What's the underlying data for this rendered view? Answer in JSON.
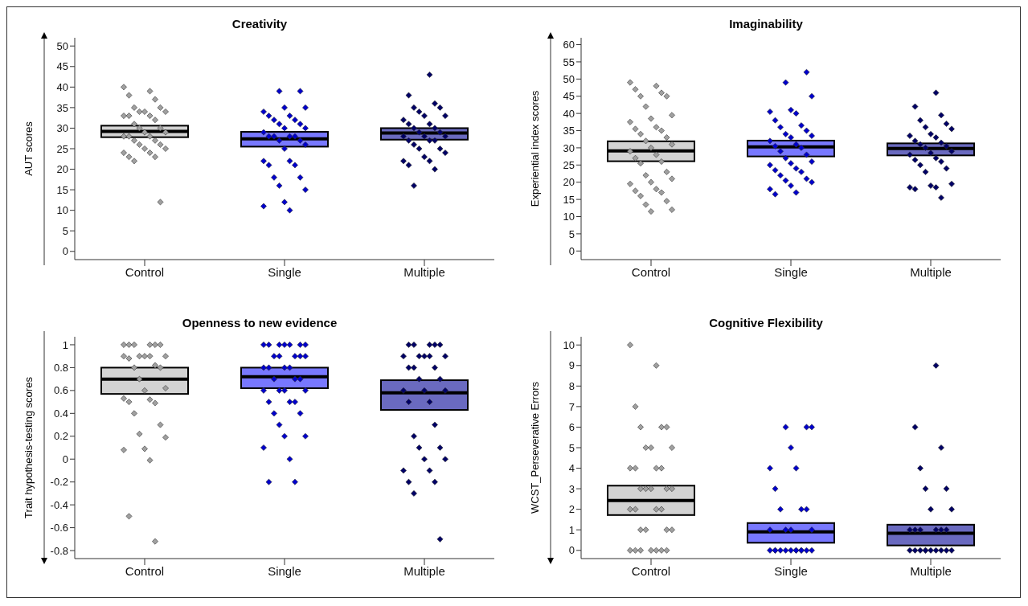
{
  "chart_data": [
    {
      "type": "box",
      "title": "Creativity",
      "ylabel": "AUT scores",
      "categories": [
        "Control",
        "Single",
        "Multiple"
      ],
      "ylim": [
        -2,
        52
      ],
      "yticks": [
        0,
        5,
        10,
        15,
        20,
        25,
        30,
        35,
        40,
        45,
        50
      ],
      "grid": false,
      "legend": false,
      "marker": "diamond",
      "colors": [
        "#d3d3d3",
        "#7878ff",
        "#6a6ac0"
      ],
      "boxes": [
        {
          "low": 27.8,
          "q1": 27.8,
          "median": 29.2,
          "q3": 30.6,
          "high": 30.6
        },
        {
          "low": 25.5,
          "q1": 25.5,
          "median": 27.4,
          "q3": 29.1,
          "high": 29.1
        },
        {
          "low": 27.2,
          "q1": 27.2,
          "median": 28.8,
          "q3": 30,
          "high": 30
        }
      ],
      "series": [
        {
          "type": "scatter",
          "color": "#a0a0a0",
          "x": [
            "Control",
            "Control",
            "Control",
            "Control",
            "Control",
            "Control",
            "Control",
            "Control",
            "Control",
            "Control",
            "Control",
            "Control",
            "Control",
            "Control",
            "Control",
            "Control",
            "Control",
            "Control",
            "Control",
            "Control",
            "Control",
            "Control",
            "Control",
            "Control",
            "Control",
            "Control",
            "Control",
            "Control",
            "Control",
            "Control",
            "Control",
            "Control",
            "Control"
          ],
          "values": [
            40,
            39,
            38,
            37,
            35,
            35,
            34,
            34,
            34,
            33,
            33,
            33,
            32,
            31,
            30,
            30,
            29,
            29,
            28,
            28,
            28,
            27,
            27,
            26,
            26,
            25,
            25,
            24,
            24,
            23,
            23,
            22,
            12
          ]
        },
        {
          "type": "scatter",
          "color": "#0000cc",
          "x": [
            "Single",
            "Single",
            "Single",
            "Single",
            "Single",
            "Single",
            "Single",
            "Single",
            "Single",
            "Single",
            "Single",
            "Single",
            "Single",
            "Single",
            "Single",
            "Single",
            "Single",
            "Single",
            "Single",
            "Single",
            "Single",
            "Single",
            "Single",
            "Single",
            "Single",
            "Single",
            "Single",
            "Single",
            "Single",
            "Single",
            "Single",
            "Single",
            "Single"
          ],
          "values": [
            39,
            39,
            35,
            35,
            34,
            33,
            33,
            32,
            32,
            31,
            31,
            30,
            30,
            29,
            28,
            28,
            28,
            28,
            27,
            27,
            26,
            25,
            22,
            22,
            21,
            21,
            18,
            18,
            16,
            15,
            12,
            11,
            10
          ]
        },
        {
          "type": "scatter",
          "color": "#000066",
          "x": [
            "Multiple",
            "Multiple",
            "Multiple",
            "Multiple",
            "Multiple",
            "Multiple",
            "Multiple",
            "Multiple",
            "Multiple",
            "Multiple",
            "Multiple",
            "Multiple",
            "Multiple",
            "Multiple",
            "Multiple",
            "Multiple",
            "Multiple",
            "Multiple",
            "Multiple",
            "Multiple",
            "Multiple",
            "Multiple",
            "Multiple",
            "Multiple",
            "Multiple",
            "Multiple",
            "Multiple",
            "Multiple",
            "Multiple",
            "Multiple",
            "Multiple"
          ],
          "values": [
            43,
            38,
            36,
            35,
            35,
            34,
            33,
            33,
            32,
            31,
            31,
            30,
            30,
            29,
            29,
            28,
            28,
            28,
            27,
            27,
            27,
            26,
            25,
            25,
            24,
            23,
            22,
            22,
            21,
            20,
            16
          ]
        }
      ]
    },
    {
      "type": "box",
      "title": "Imaginability",
      "ylabel": "Experiential index scores",
      "categories": [
        "Control",
        "Single",
        "Multiple"
      ],
      "ylim": [
        -2.5,
        62
      ],
      "yticks": [
        0,
        5,
        10,
        15,
        20,
        25,
        30,
        35,
        40,
        45,
        50,
        55,
        60
      ],
      "grid": false,
      "legend": false,
      "marker": "diamond",
      "colors": [
        "#d3d3d3",
        "#7878ff",
        "#6a6ac0"
      ],
      "boxes": [
        {
          "low": 26.1,
          "q1": 26.1,
          "median": 29.1,
          "q3": 31.9,
          "high": 31.9
        },
        {
          "low": 27.5,
          "q1": 27.5,
          "median": 30.3,
          "q3": 32.1,
          "high": 32.1
        },
        {
          "low": 27.8,
          "q1": 27.8,
          "median": 29.8,
          "q3": 31.3,
          "high": 31.3
        }
      ],
      "series": [
        {
          "type": "scatter",
          "color": "#a0a0a0",
          "x": [
            "Control",
            "Control",
            "Control",
            "Control",
            "Control",
            "Control",
            "Control",
            "Control",
            "Control",
            "Control",
            "Control",
            "Control",
            "Control",
            "Control",
            "Control",
            "Control",
            "Control",
            "Control",
            "Control",
            "Control",
            "Control",
            "Control",
            "Control",
            "Control",
            "Control",
            "Control",
            "Control",
            "Control",
            "Control",
            "Control",
            "Control",
            "Control",
            "Control",
            "Control",
            "Control",
            "Control"
          ],
          "values": [
            49,
            48,
            47,
            46,
            45,
            45,
            42,
            39.5,
            38.5,
            37.5,
            36,
            35.5,
            35,
            34,
            33,
            32,
            31,
            30,
            29,
            28,
            27,
            26,
            25.5,
            23,
            22,
            21,
            20,
            19.5,
            18,
            17.5,
            17,
            16,
            14.5,
            13.5,
            12,
            11.5
          ]
        },
        {
          "type": "scatter",
          "color": "#0000cc",
          "x": [
            "Single",
            "Single",
            "Single",
            "Single",
            "Single",
            "Single",
            "Single",
            "Single",
            "Single",
            "Single",
            "Single",
            "Single",
            "Single",
            "Single",
            "Single",
            "Single",
            "Single",
            "Single",
            "Single",
            "Single",
            "Single",
            "Single",
            "Single",
            "Single",
            "Single",
            "Single",
            "Single",
            "Single",
            "Single",
            "Single",
            "Single",
            "Single",
            "Single",
            "Single"
          ],
          "values": [
            52,
            49,
            45,
            41,
            40.5,
            40,
            38,
            36.5,
            36,
            35,
            34,
            33.5,
            33,
            32,
            31,
            30.5,
            30,
            29,
            28,
            27,
            26,
            25.5,
            25,
            24,
            23.5,
            23,
            22,
            21,
            20.5,
            20,
            19,
            18,
            17,
            16.5
          ]
        },
        {
          "type": "scatter",
          "color": "#000066",
          "x": [
            "Multiple",
            "Multiple",
            "Multiple",
            "Multiple",
            "Multiple",
            "Multiple",
            "Multiple",
            "Multiple",
            "Multiple",
            "Multiple",
            "Multiple",
            "Multiple",
            "Multiple",
            "Multiple",
            "Multiple",
            "Multiple",
            "Multiple",
            "Multiple",
            "Multiple",
            "Multiple",
            "Multiple",
            "Multiple",
            "Multiple",
            "Multiple",
            "Multiple",
            "Multiple",
            "Multiple",
            "Multiple",
            "Multiple",
            "Multiple"
          ],
          "values": [
            46,
            42,
            39.5,
            38,
            37,
            36,
            35.5,
            34,
            33.5,
            33,
            32,
            31.5,
            31,
            30.5,
            30,
            29,
            28.5,
            28,
            27,
            26.5,
            26,
            25,
            24,
            23,
            19.5,
            19,
            18.5,
            18.5,
            18,
            15.5
          ]
        }
      ]
    },
    {
      "type": "box",
      "title": "Openness to new evidence",
      "ylabel": "Trait hypothesis-testing scores",
      "categories": [
        "Control",
        "Single",
        "Multiple"
      ],
      "ylim": [
        -0.87,
        1.07
      ],
      "yticks": [
        -0.8,
        -0.6,
        -0.4,
        -0.2,
        0,
        0.2,
        0.4,
        0.6,
        0.8,
        1
      ],
      "grid": false,
      "legend": false,
      "marker": "diamond",
      "colors": [
        "#d3d3d3",
        "#7878ff",
        "#6a6ac0"
      ],
      "boxes": [
        {
          "low": 0.57,
          "q1": 0.57,
          "median": 0.7,
          "q3": 0.8,
          "high": 0.8
        },
        {
          "low": 0.62,
          "q1": 0.62,
          "median": 0.72,
          "q3": 0.8,
          "high": 0.8
        },
        {
          "low": 0.43,
          "q1": 0.43,
          "median": 0.58,
          "q3": 0.69,
          "high": 0.69
        }
      ],
      "series": [
        {
          "type": "scatter",
          "color": "#a0a0a0",
          "x": [
            "Control",
            "Control",
            "Control",
            "Control",
            "Control",
            "Control",
            "Control",
            "Control",
            "Control",
            "Control",
            "Control",
            "Control",
            "Control",
            "Control",
            "Control",
            "Control",
            "Control",
            "Control",
            "Control",
            "Control",
            "Control",
            "Control",
            "Control",
            "Control",
            "Control",
            "Control",
            "Control",
            "Control",
            "Control",
            "Control",
            "Control"
          ],
          "values": [
            1,
            1,
            1,
            1,
            1,
            1,
            0.9,
            0.9,
            0.9,
            0.9,
            0.9,
            0.88,
            0.82,
            0.8,
            0.8,
            0.7,
            0.62,
            0.6,
            0.53,
            0.52,
            0.5,
            0.49,
            0.4,
            0.3,
            0.22,
            0.19,
            0.09,
            0.08,
            -0.01,
            -0.5,
            -0.72
          ]
        },
        {
          "type": "scatter",
          "color": "#0000cc",
          "x": [
            "Single",
            "Single",
            "Single",
            "Single",
            "Single",
            "Single",
            "Single",
            "Single",
            "Single",
            "Single",
            "Single",
            "Single",
            "Single",
            "Single",
            "Single",
            "Single",
            "Single",
            "Single",
            "Single",
            "Single",
            "Single",
            "Single",
            "Single",
            "Single",
            "Single",
            "Single",
            "Single",
            "Single",
            "Single",
            "Single",
            "Single",
            "Single",
            "Single",
            "Single",
            "Single"
          ],
          "values": [
            1,
            1,
            1,
            1,
            1,
            1,
            1,
            0.9,
            0.9,
            0.9,
            0.9,
            0.9,
            0.8,
            0.8,
            0.8,
            0.8,
            0.7,
            0.7,
            0.7,
            0.6,
            0.6,
            0.6,
            0.6,
            0.5,
            0.5,
            0.5,
            0.4,
            0.4,
            0.3,
            0.2,
            0.2,
            0.1,
            0,
            -0.2,
            -0.2
          ]
        },
        {
          "type": "scatter",
          "color": "#000066",
          "x": [
            "Multiple",
            "Multiple",
            "Multiple",
            "Multiple",
            "Multiple",
            "Multiple",
            "Multiple",
            "Multiple",
            "Multiple",
            "Multiple",
            "Multiple",
            "Multiple",
            "Multiple",
            "Multiple",
            "Multiple",
            "Multiple",
            "Multiple",
            "Multiple",
            "Multiple",
            "Multiple",
            "Multiple",
            "Multiple",
            "Multiple",
            "Multiple",
            "Multiple",
            "Multiple",
            "Multiple",
            "Multiple",
            "Multiple",
            "Multiple",
            "Multiple",
            "Multiple"
          ],
          "values": [
            1,
            1,
            1,
            1,
            1,
            0.9,
            0.9,
            0.9,
            0.9,
            0.9,
            0.8,
            0.8,
            0.8,
            0.7,
            0.7,
            0.6,
            0.6,
            0.6,
            0.5,
            0.5,
            0.3,
            0.2,
            0.1,
            0.1,
            0,
            0,
            -0.1,
            -0.1,
            -0.2,
            -0.2,
            -0.3,
            -0.7
          ]
        }
      ]
    },
    {
      "type": "box",
      "title": "Cognitive Flexibility",
      "ylabel": "WCST_Perseverative Errors",
      "categories": [
        "Control",
        "Single",
        "Multiple"
      ],
      "ylim": [
        -0.4,
        10.4
      ],
      "yticks": [
        0,
        1,
        2,
        3,
        4,
        5,
        6,
        7,
        8,
        9,
        10
      ],
      "grid": false,
      "legend": false,
      "marker": "diamond",
      "colors": [
        "#d3d3d3",
        "#7878ff",
        "#6a6ac0"
      ],
      "boxes": [
        {
          "low": 1.72,
          "q1": 1.72,
          "median": 2.43,
          "q3": 3.15,
          "high": 3.15
        },
        {
          "low": 0.37,
          "q1": 0.37,
          "median": 0.9,
          "q3": 1.33,
          "high": 1.33
        },
        {
          "low": 0.24,
          "q1": 0.24,
          "median": 0.83,
          "q3": 1.25,
          "high": 1.25
        }
      ],
      "series": [
        {
          "type": "scatter",
          "color": "#a0a0a0",
          "x": [
            "Control",
            "Control",
            "Control",
            "Control",
            "Control",
            "Control",
            "Control",
            "Control",
            "Control",
            "Control",
            "Control",
            "Control",
            "Control",
            "Control",
            "Control",
            "Control",
            "Control",
            "Control",
            "Control",
            "Control",
            "Control",
            "Control",
            "Control",
            "Control",
            "Control",
            "Control",
            "Control",
            "Control",
            "Control",
            "Control",
            "Control",
            "Control",
            "Control"
          ],
          "values": [
            10,
            9,
            7,
            6,
            6,
            6,
            5,
            5,
            5,
            4,
            4,
            4,
            4,
            3,
            3,
            3,
            3,
            3,
            2,
            2,
            2,
            2,
            1,
            1,
            1,
            1,
            0,
            0,
            0,
            0,
            0,
            0,
            0
          ]
        },
        {
          "type": "scatter",
          "color": "#0000cc",
          "x": [
            "Single",
            "Single",
            "Single",
            "Single",
            "Single",
            "Single",
            "Single",
            "Single",
            "Single",
            "Single",
            "Single",
            "Single",
            "Single",
            "Single",
            "Single",
            "Single",
            "Single",
            "Single",
            "Single",
            "Single",
            "Single",
            "Single",
            "Single",
            "Single",
            "Single",
            "Single"
          ],
          "values": [
            6,
            6,
            6,
            5,
            4,
            4,
            3,
            2,
            2,
            2,
            1,
            1,
            1,
            1,
            0,
            0,
            0,
            0,
            0,
            0,
            0,
            0,
            0,
            0,
            0,
            0
          ]
        },
        {
          "type": "scatter",
          "color": "#000066",
          "x": [
            "Multiple",
            "Multiple",
            "Multiple",
            "Multiple",
            "Multiple",
            "Multiple",
            "Multiple",
            "Multiple",
            "Multiple",
            "Multiple",
            "Multiple",
            "Multiple",
            "Multiple",
            "Multiple",
            "Multiple",
            "Multiple",
            "Multiple",
            "Multiple",
            "Multiple",
            "Multiple",
            "Multiple",
            "Multiple",
            "Multiple",
            "Multiple"
          ],
          "values": [
            9,
            6,
            5,
            4,
            3,
            3,
            2,
            2,
            1,
            1,
            1,
            1,
            1,
            1,
            0,
            0,
            0,
            0,
            0,
            0,
            0,
            0,
            0,
            0
          ]
        }
      ]
    }
  ]
}
